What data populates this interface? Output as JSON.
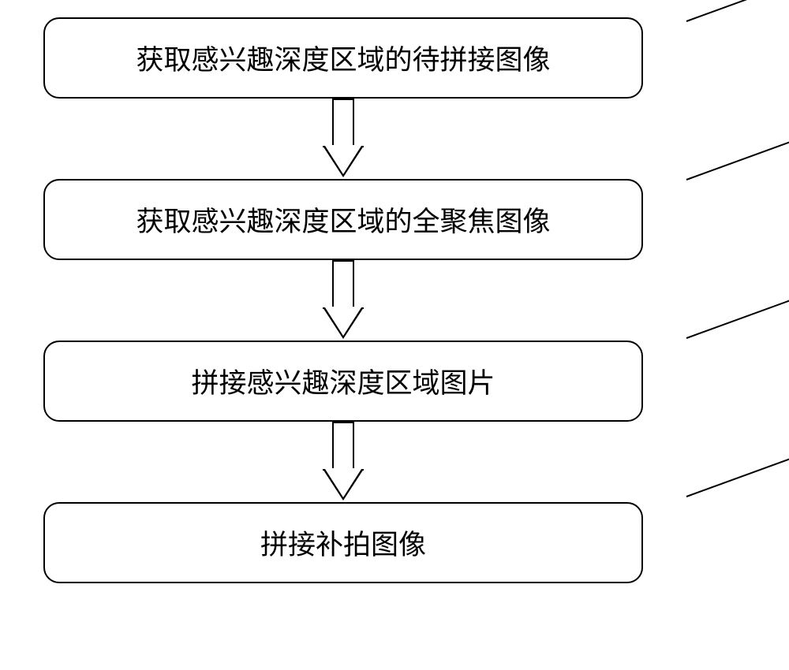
{
  "flowchart": {
    "type": "flowchart",
    "background_color": "#ffffff",
    "box_border_color": "#000000",
    "box_border_width": 2,
    "box_border_radius": 20,
    "box_background_color": "#ffffff",
    "text_color": "#000000",
    "text_fontsize": 35,
    "arrow_color": "#000000",
    "arrow_fill": "#ffffff",
    "steps": [
      {
        "id": "step1",
        "label": "获取感兴趣深度区域的待拼接图像"
      },
      {
        "id": "step2",
        "label": "获取感兴趣深度区域的全聚焦图像"
      },
      {
        "id": "step3",
        "label": "拼接感兴趣深度区域图片"
      },
      {
        "id": "step4",
        "label": "拼接补拍图像"
      }
    ],
    "leader_lines": {
      "color": "#000000",
      "width": 2,
      "angle_deg": -20
    }
  }
}
